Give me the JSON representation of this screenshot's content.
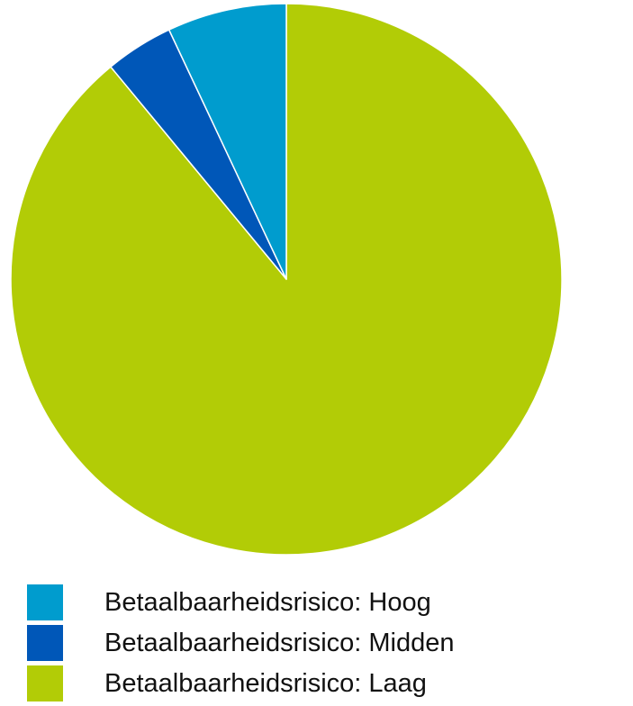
{
  "chart_data": {
    "type": "pie",
    "start_angle_deg": 0,
    "direction": "clockwise",
    "slices": [
      {
        "label": "Betaalbaarheidsrisico: Laag",
        "value": 89,
        "color": "#b2cc06"
      },
      {
        "label": "Betaalbaarheidsrisico: Midden",
        "value": 4,
        "color": "#0057b8"
      },
      {
        "label": "Betaalbaarheidsrisico: Hoog",
        "value": 7,
        "color": "#009cce"
      }
    ],
    "legend": {
      "placement": "bottom",
      "entries": [
        {
          "label": "Betaalbaarheidsrisico: Hoog",
          "color": "#009cce"
        },
        {
          "label": "Betaalbaarheidsrisico: Midden",
          "color": "#0057b8"
        },
        {
          "label": "Betaalbaarheidsrisico: Laag",
          "color": "#b2cc06"
        }
      ]
    }
  }
}
